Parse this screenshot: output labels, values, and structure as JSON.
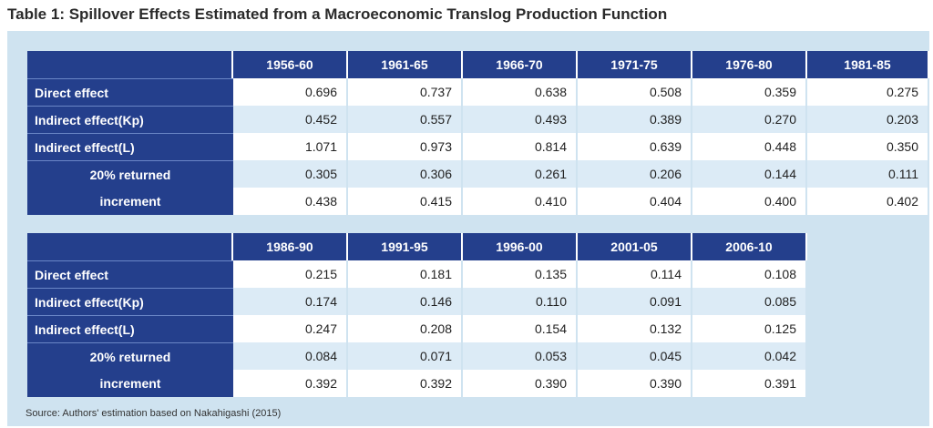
{
  "title": "Table 1: Spillover Effects Estimated from a Macroeconomic Translog Production Function",
  "row_labels": [
    "Direct effect",
    "Indirect effect(Kp)",
    "Indirect effect(L)",
    "20% returned",
    "increment"
  ],
  "table1": {
    "years": [
      "1956-60",
      "1961-65",
      "1966-70",
      "1971-75",
      "1976-80",
      "1981-85"
    ],
    "rows": [
      [
        "0.696",
        "0.737",
        "0.638",
        "0.508",
        "0.359",
        "0.275"
      ],
      [
        "0.452",
        "0.557",
        "0.493",
        "0.389",
        "0.270",
        "0.203"
      ],
      [
        "1.071",
        "0.973",
        "0.814",
        "0.639",
        "0.448",
        "0.350"
      ],
      [
        "0.305",
        "0.306",
        "0.261",
        "0.206",
        "0.144",
        "0.111"
      ],
      [
        "0.438",
        "0.415",
        "0.410",
        "0.404",
        "0.400",
        "0.402"
      ]
    ]
  },
  "table2": {
    "years": [
      "1986-90",
      "1991-95",
      "1996-00",
      "2001-05",
      "2006-10"
    ],
    "rows": [
      [
        "0.215",
        "0.181",
        "0.135",
        "0.114",
        "0.108"
      ],
      [
        "0.174",
        "0.146",
        "0.110",
        "0.091",
        "0.085"
      ],
      [
        "0.247",
        "0.208",
        "0.154",
        "0.132",
        "0.125"
      ],
      [
        "0.084",
        "0.071",
        "0.053",
        "0.045",
        "0.042"
      ],
      [
        "0.392",
        "0.392",
        "0.390",
        "0.390",
        "0.391"
      ]
    ]
  },
  "source": "Source: Authors' estimation based on Nakahigashi (2015)",
  "colors": {
    "header": "#243f8c",
    "panel": "#cfe3f0",
    "row_even": "#dcebf6",
    "row_odd": "#ffffff"
  }
}
